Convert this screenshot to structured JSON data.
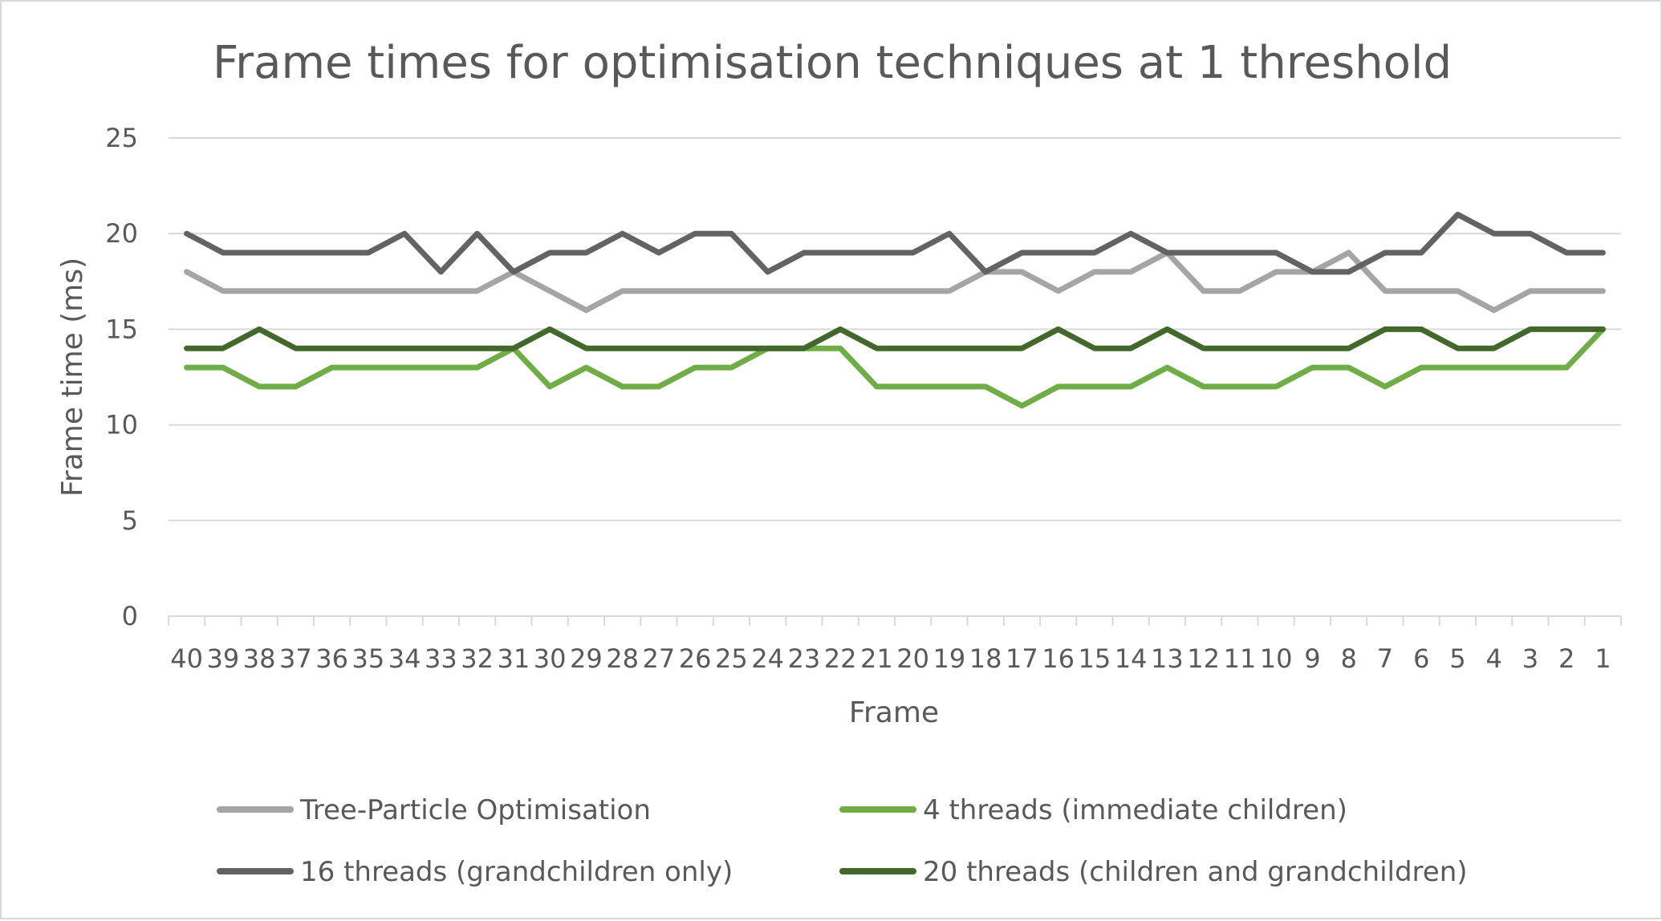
{
  "chart_data": {
    "type": "line",
    "title": "Frame times for optimisation techniques at 1 threshold",
    "xlabel": "Frame",
    "ylabel": "Frame time (ms)",
    "ylim": [
      0,
      25
    ],
    "y_ticks": [
      0,
      5,
      10,
      15,
      20,
      25
    ],
    "grid": true,
    "legend_position": "bottom",
    "categories": [
      "40",
      "39",
      "38",
      "37",
      "36",
      "35",
      "34",
      "33",
      "32",
      "31",
      "30",
      "29",
      "28",
      "27",
      "26",
      "25",
      "24",
      "23",
      "22",
      "21",
      "20",
      "19",
      "18",
      "17",
      "16",
      "15",
      "14",
      "13",
      "12",
      "11",
      "10",
      "9",
      "8",
      "7",
      "6",
      "5",
      "4",
      "3",
      "2",
      "1"
    ],
    "series": [
      {
        "name": "Tree-Particle Optimisation",
        "color": "#a5a5a5",
        "values": [
          18,
          17,
          17,
          17,
          17,
          17,
          17,
          17,
          17,
          18,
          17,
          16,
          17,
          17,
          17,
          17,
          17,
          17,
          17,
          17,
          17,
          17,
          18,
          18,
          17,
          18,
          18,
          19,
          17,
          17,
          18,
          18,
          19,
          17,
          17,
          17,
          16,
          17,
          17,
          17
        ]
      },
      {
        "name": "4 threads (immediate children)",
        "color": "#70ad47",
        "values": [
          13,
          13,
          12,
          12,
          13,
          13,
          13,
          13,
          13,
          14,
          12,
          13,
          12,
          12,
          13,
          13,
          14,
          14,
          14,
          12,
          12,
          12,
          12,
          11,
          12,
          12,
          12,
          13,
          12,
          12,
          12,
          13,
          13,
          12,
          13,
          13,
          13,
          13,
          13,
          15
        ]
      },
      {
        "name": "16 threads (grandchildren only)",
        "color": "#636363",
        "values": [
          20,
          19,
          19,
          19,
          19,
          19,
          20,
          18,
          20,
          18,
          19,
          19,
          20,
          19,
          20,
          20,
          18,
          19,
          19,
          19,
          19,
          20,
          18,
          19,
          19,
          19,
          20,
          19,
          19,
          19,
          19,
          18,
          18,
          19,
          19,
          21,
          20,
          20,
          19,
          19
        ]
      },
      {
        "name": "20 threads (children and grandchildren)",
        "color": "#43682b",
        "values": [
          14,
          14,
          15,
          14,
          14,
          14,
          14,
          14,
          14,
          14,
          15,
          14,
          14,
          14,
          14,
          14,
          14,
          14,
          15,
          14,
          14,
          14,
          14,
          14,
          15,
          14,
          14,
          15,
          14,
          14,
          14,
          14,
          14,
          15,
          15,
          14,
          14,
          15,
          15,
          15
        ]
      }
    ]
  }
}
